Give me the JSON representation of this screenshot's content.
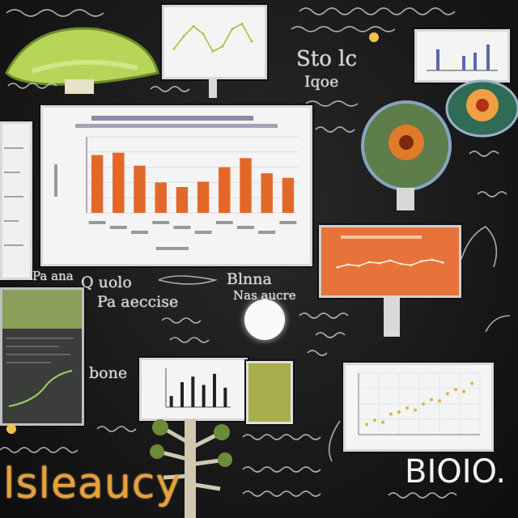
{
  "board": {
    "big_word": "lsleaucy",
    "corner_word": "BIOIO."
  },
  "chalk_texts": [
    "Q uolo",
    "Pa ana",
    "Pa aeccise",
    "Sto lc",
    "Iqoe",
    "bone",
    "Blnna",
    "Nas aucre"
  ],
  "colors": {
    "board": "#161616",
    "orange": "#e8733a",
    "title": "#e7a13a",
    "leaf": "#b6d65a"
  },
  "main_chart": {
    "chart_data": {
      "type": "bar",
      "values": [
        76,
        79,
        62,
        40,
        34,
        41,
        60,
        72,
        52,
        46
      ],
      "ylim": [
        0,
        100
      ]
    }
  },
  "top_chart": {
    "chart_data": {
      "type": "line",
      "x": [
        0,
        1,
        2,
        3,
        4,
        5,
        6,
        7,
        8
      ],
      "values": [
        30,
        55,
        75,
        60,
        25,
        35,
        70,
        80,
        45
      ]
    }
  },
  "orange_chart": {
    "chart_data": {
      "type": "line",
      "x": [
        0,
        1,
        2,
        3,
        4,
        5,
        6,
        7,
        8,
        9,
        10
      ],
      "values": [
        40,
        48,
        44,
        55,
        52,
        60,
        50,
        46,
        58,
        62,
        54
      ]
    }
  },
  "mini_bar_chart": {
    "chart_data": {
      "type": "bar",
      "values": [
        20,
        45,
        55,
        40,
        60,
        35
      ]
    }
  },
  "scatter_chart": {
    "chart_data": {
      "type": "scatter",
      "x": [
        5,
        10,
        15,
        20,
        25,
        30,
        35,
        40,
        45,
        50,
        55,
        60,
        65,
        70
      ],
      "values": [
        10,
        14,
        12,
        20,
        22,
        26,
        24,
        30,
        34,
        33,
        40,
        44,
        42,
        50
      ]
    }
  }
}
